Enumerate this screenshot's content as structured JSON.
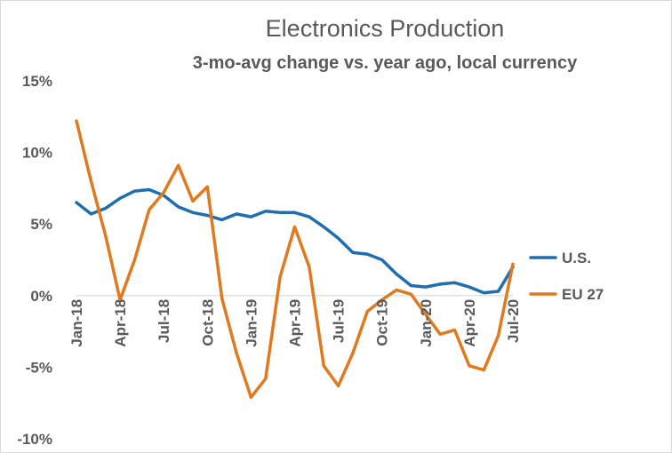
{
  "chart_data": {
    "type": "line",
    "title": "Electronics Production",
    "subtitle": "3-mo-avg change vs. year ago, local currency",
    "xlabel": "",
    "ylabel": "",
    "ylim": [
      -10,
      15
    ],
    "yticks": [
      15,
      10,
      5,
      0,
      -5,
      -10
    ],
    "ytick_labels": [
      "15%",
      "10%",
      "5%",
      "0%",
      "-5%",
      "-10%"
    ],
    "x": [
      "Jan-18",
      "Feb-18",
      "Mar-18",
      "Apr-18",
      "May-18",
      "Jun-18",
      "Jul-18",
      "Aug-18",
      "Sep-18",
      "Oct-18",
      "Nov-18",
      "Dec-18",
      "Jan-19",
      "Feb-19",
      "Mar-19",
      "Apr-19",
      "May-19",
      "Jun-19",
      "Jul-19",
      "Aug-19",
      "Sep-19",
      "Oct-19",
      "Nov-19",
      "Dec-19",
      "Jan-20",
      "Feb-20",
      "Mar-20",
      "Apr-20",
      "May-20",
      "Jun-20",
      "Jul-20"
    ],
    "xtick_labels": [
      "Jan-18",
      "Apr-18",
      "Jul-18",
      "Oct-18",
      "Jan-19",
      "Apr-19",
      "Jul-19",
      "Oct-19",
      "Jan-20",
      "Apr-20",
      "Jul-20"
    ],
    "xtick_indices": [
      0,
      3,
      6,
      9,
      12,
      15,
      18,
      21,
      24,
      27,
      30
    ],
    "grid": false,
    "legend_position": "right",
    "series": [
      {
        "name": "U.S.",
        "color": "#1f6fb0",
        "values": [
          6.5,
          5.7,
          6.1,
          6.8,
          7.3,
          7.4,
          7.0,
          6.2,
          5.8,
          5.6,
          5.3,
          5.7,
          5.5,
          5.9,
          5.8,
          5.8,
          5.5,
          4.8,
          4.0,
          3.0,
          2.9,
          2.5,
          1.5,
          0.7,
          0.6,
          0.8,
          0.9,
          0.6,
          0.2,
          0.3,
          2.0
        ]
      },
      {
        "name": "EU 27",
        "color": "#e07a1f",
        "values": [
          12.2,
          8.0,
          4.2,
          -0.3,
          2.5,
          6.0,
          7.2,
          9.1,
          6.6,
          7.6,
          -0.2,
          -4.0,
          -7.1,
          -5.8,
          1.3,
          4.8,
          2.0,
          -4.9,
          -6.3,
          -4.0,
          -1.1,
          -0.3,
          0.4,
          0.1,
          -1.3,
          -2.7,
          -2.4,
          -4.9,
          -5.2,
          -2.8,
          2.2
        ]
      }
    ]
  }
}
